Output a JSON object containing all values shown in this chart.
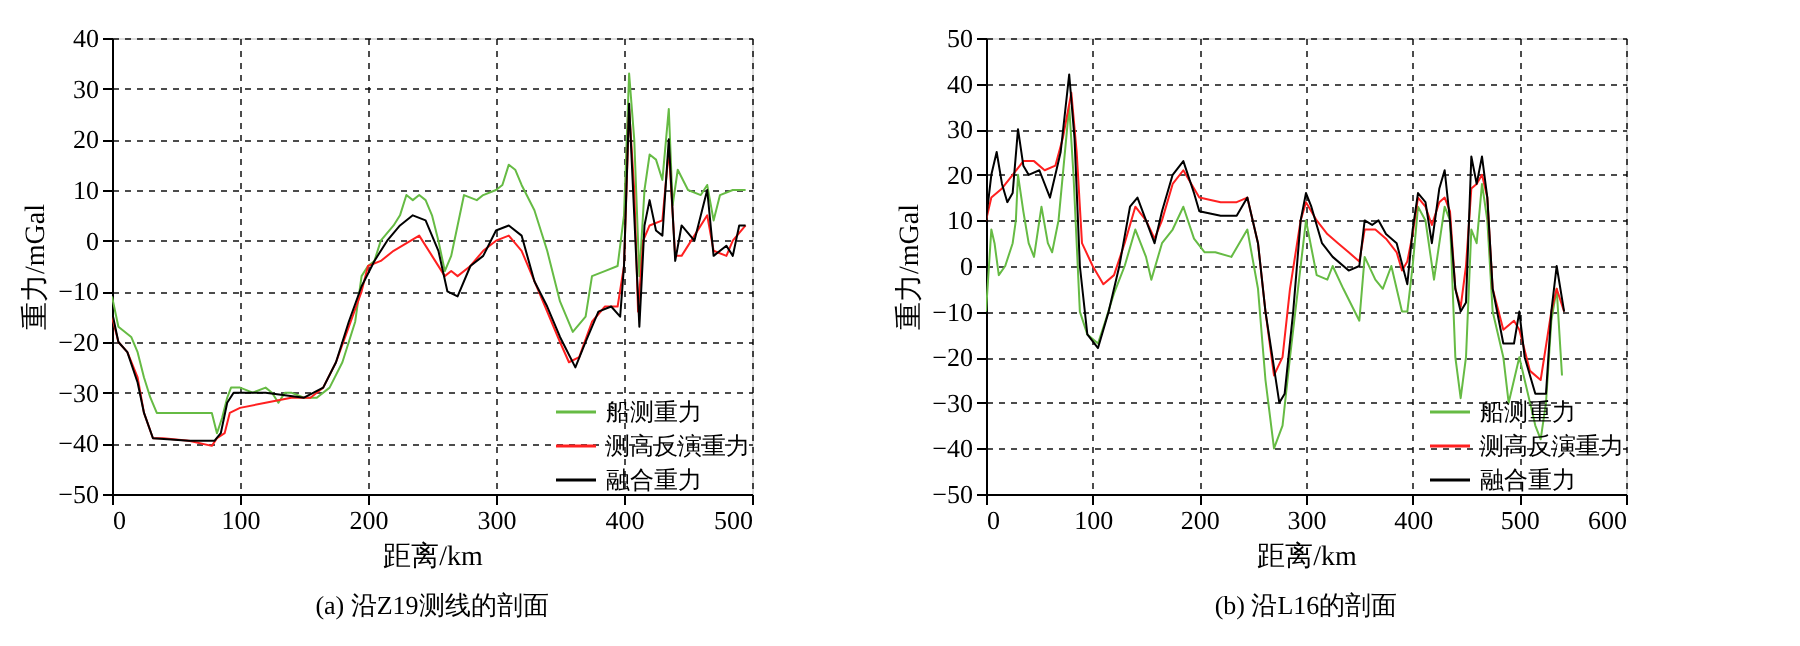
{
  "chart_data": [
    {
      "type": "line",
      "title": "(a) 沿Z19测线的剖面",
      "xlabel": "距离/km",
      "ylabel": "重力/mGal",
      "xlim": [
        0,
        500
      ],
      "xticks": [
        0,
        100,
        200,
        300,
        400,
        500
      ],
      "ylim": [
        -50,
        40
      ],
      "yticks": [
        -50,
        -40,
        -30,
        -20,
        -10,
        0,
        10,
        20,
        30,
        40
      ],
      "grid": true,
      "legend": "bottom right",
      "series": [
        {
          "name": "船测重力",
          "color": "#66bb44",
          "x": [
            0,
            5,
            15,
            20,
            25,
            30,
            35,
            50,
            78,
            82,
            86,
            90,
            93,
            100,
            110,
            120,
            125,
            130,
            135,
            140,
            150,
            160,
            170,
            180,
            190,
            195,
            200,
            205,
            210,
            220,
            225,
            230,
            235,
            240,
            245,
            250,
            255,
            260,
            265,
            270,
            275,
            285,
            290,
            300,
            305,
            310,
            315,
            320,
            330,
            340,
            350,
            360,
            370,
            375,
            385,
            395,
            400,
            404,
            408,
            412,
            416,
            420,
            425,
            430,
            435,
            438,
            442,
            450,
            460,
            465,
            470,
            475,
            485,
            495
          ],
          "values": [
            -11,
            -17,
            -19,
            -22,
            -27,
            -31,
            -34,
            -34,
            -34,
            -38,
            -35,
            -31,
            -29,
            -29,
            -30,
            -29,
            -30,
            -32,
            -30,
            -30,
            -31,
            -31,
            -29,
            -24,
            -16,
            -7,
            -5,
            -4,
            0,
            3,
            5,
            9,
            8,
            9,
            8,
            5,
            0,
            -6,
            -3,
            3,
            9,
            8,
            9,
            10,
            11,
            15,
            14,
            11,
            6,
            -2,
            -12,
            -18,
            -15,
            -7,
            -6,
            -5,
            5,
            33,
            20,
            -7,
            10,
            17,
            16,
            12,
            26,
            7,
            14,
            10,
            9,
            11,
            4,
            9,
            10,
            10
          ]
        },
        {
          "name": "测高反演重力",
          "color": "#ff2020",
          "x": [
            0,
            5,
            12,
            20,
            25,
            32,
            40,
            60,
            78,
            82,
            88,
            92,
            100,
            120,
            140,
            155,
            165,
            175,
            185,
            195,
            200,
            210,
            220,
            240,
            250,
            260,
            265,
            270,
            280,
            290,
            300,
            310,
            320,
            330,
            340,
            350,
            357,
            365,
            375,
            385,
            395,
            400,
            404,
            408,
            411,
            415,
            420,
            430,
            435,
            440,
            445,
            455,
            465,
            470,
            480,
            485,
            495
          ],
          "values": [
            -15,
            -20,
            -22,
            -27,
            -34,
            -39,
            -39,
            -39.5,
            -40.5,
            -39,
            -38,
            -34,
            -33,
            -32,
            -31,
            -31,
            -29,
            -24,
            -17,
            -10,
            -5,
            -4,
            -2,
            1,
            -3,
            -7,
            -6,
            -7,
            -5,
            -2,
            0,
            1,
            -2,
            -8,
            -14,
            -20,
            -24,
            -23,
            -16,
            -13,
            -13,
            -5,
            26,
            10,
            -14,
            0,
            3,
            4,
            18,
            -3,
            -3,
            1,
            5,
            -2,
            -3,
            0,
            3
          ]
        },
        {
          "name": "融合重力",
          "color": "#000000",
          "x": [
            0,
            5,
            12,
            20,
            25,
            32,
            60,
            80,
            85,
            90,
            95,
            120,
            150,
            165,
            175,
            185,
            195,
            205,
            215,
            225,
            235,
            245,
            255,
            262,
            270,
            280,
            290,
            300,
            310,
            320,
            330,
            340,
            350,
            362,
            370,
            380,
            390,
            397,
            400,
            404,
            408,
            412,
            416,
            420,
            425,
            430,
            435,
            440,
            445,
            455,
            465,
            470,
            480,
            485,
            490,
            495
          ],
          "values": [
            -14,
            -20,
            -22,
            -28,
            -34,
            -39,
            -39.5,
            -39.5,
            -38,
            -32,
            -30,
            -30,
            -31,
            -29,
            -24,
            -16,
            -9,
            -4,
            0,
            3,
            5,
            4,
            -2,
            -10,
            -11,
            -5,
            -3,
            2,
            3,
            1,
            -8,
            -13,
            -19,
            -25,
            -20,
            -14,
            -13,
            -15,
            -5,
            27,
            5,
            -17,
            3,
            8,
            2,
            1,
            20,
            -4,
            3,
            0,
            10,
            -3,
            -1,
            -3,
            3,
            3
          ]
        }
      ]
    },
    {
      "type": "line",
      "title": "(b) 沿L16的剖面",
      "xlabel": "距离/km",
      "ylabel": "重力/mGal",
      "xlim": [
        0,
        600
      ],
      "xticks": [
        0,
        100,
        200,
        300,
        400,
        500,
        600
      ],
      "ylim": [
        -50,
        50
      ],
      "yticks": [
        -50,
        -40,
        -30,
        -20,
        -10,
        0,
        10,
        20,
        30,
        40,
        50
      ],
      "grid": true,
      "legend": "bottom right",
      "series": [
        {
          "name": "船测重力",
          "color": "#66bb44",
          "x": [
            0,
            5,
            8,
            12,
            18,
            25,
            28,
            30,
            35,
            40,
            45,
            52,
            58,
            62,
            68,
            72,
            78,
            82,
            88,
            95,
            100,
            105,
            112,
            120,
            130,
            140,
            150,
            155,
            165,
            175,
            185,
            195,
            205,
            215,
            230,
            245,
            255,
            262,
            270,
            278,
            285,
            295,
            300,
            310,
            320,
            325,
            335,
            350,
            355,
            365,
            372,
            380,
            390,
            395,
            400,
            405,
            412,
            420,
            430,
            435,
            440,
            445,
            450,
            455,
            460,
            465,
            470,
            475,
            485,
            490,
            500,
            505,
            515,
            520,
            525,
            530,
            535,
            540
          ],
          "values": [
            -10,
            8,
            5,
            -2,
            0,
            5,
            10,
            20,
            12,
            5,
            2,
            13,
            5,
            3,
            10,
            20,
            35,
            20,
            -10,
            -15,
            -16,
            -17,
            -12,
            -6,
            0,
            8,
            2,
            -3,
            5,
            8,
            13,
            6,
            3,
            3,
            2,
            8,
            -5,
            -25,
            -40,
            -35,
            -20,
            0,
            10,
            -2,
            -3,
            0,
            -5,
            -12,
            2,
            -3,
            -5,
            0,
            -10,
            -10,
            0,
            13,
            10,
            -3,
            13,
            10,
            -20,
            -29,
            -20,
            8,
            5,
            18,
            10,
            -10,
            -20,
            -30,
            -20,
            -25,
            -35,
            -38,
            -30,
            -12,
            -5,
            -24
          ]
        },
        {
          "name": "测高反演重力",
          "color": "#ff2020",
          "x": [
            0,
            5,
            15,
            25,
            35,
            45,
            55,
            65,
            72,
            80,
            85,
            90,
            100,
            110,
            120,
            130,
            140,
            150,
            158,
            165,
            175,
            185,
            195,
            200,
            220,
            235,
            245,
            255,
            262,
            270,
            278,
            285,
            295,
            300,
            310,
            320,
            330,
            340,
            350,
            355,
            365,
            375,
            385,
            390,
            395,
            400,
            405,
            412,
            418,
            425,
            430,
            435,
            440,
            445,
            450,
            455,
            460,
            465,
            470,
            475,
            485,
            495,
            500,
            510,
            520,
            530,
            535,
            542
          ],
          "values": [
            10,
            15,
            17,
            20,
            23,
            23,
            21,
            22,
            28,
            38,
            25,
            5,
            0,
            -4,
            -2,
            5,
            13,
            10,
            6,
            10,
            18,
            21,
            17,
            15,
            14,
            14,
            15,
            5,
            -10,
            -24,
            -20,
            -5,
            10,
            14,
            10,
            7,
            5,
            3,
            1,
            8,
            8,
            6,
            3,
            -1,
            1,
            7,
            15,
            13,
            9,
            14,
            15,
            12,
            -5,
            -9,
            0,
            17,
            18,
            20,
            15,
            -5,
            -14,
            -12,
            -14,
            -23,
            -25,
            -10,
            -5,
            -10
          ]
        },
        {
          "name": "融合重力",
          "color": "#000000",
          "x": [
            0,
            5,
            10,
            15,
            20,
            25,
            30,
            35,
            40,
            50,
            60,
            70,
            78,
            83,
            88,
            95,
            105,
            115,
            125,
            135,
            142,
            150,
            158,
            165,
            175,
            185,
            195,
            200,
            220,
            235,
            245,
            255,
            262,
            275,
            280,
            288,
            295,
            300,
            305,
            315,
            325,
            340,
            350,
            355,
            362,
            368,
            375,
            385,
            395,
            400,
            405,
            412,
            418,
            425,
            430,
            435,
            440,
            445,
            450,
            455,
            460,
            465,
            470,
            475,
            485,
            495,
            500,
            505,
            515,
            525,
            530,
            535,
            542
          ],
          "values": [
            10,
            20,
            25,
            18,
            14,
            16,
            30,
            22,
            20,
            21,
            15,
            25,
            42,
            28,
            0,
            -15,
            -18,
            -10,
            0,
            13,
            15,
            10,
            5,
            12,
            20,
            23,
            16,
            12,
            11,
            11,
            15,
            5,
            -10,
            -30,
            -28,
            -10,
            10,
            16,
            13,
            5,
            2,
            -1,
            0,
            10,
            9,
            10,
            7,
            5,
            -4,
            8,
            16,
            14,
            5,
            17,
            21,
            10,
            -5,
            -10,
            -8,
            24,
            18,
            24,
            15,
            -5,
            -17,
            -17,
            -10,
            -20,
            -28,
            -28,
            -10,
            0,
            -10
          ]
        }
      ]
    }
  ]
}
